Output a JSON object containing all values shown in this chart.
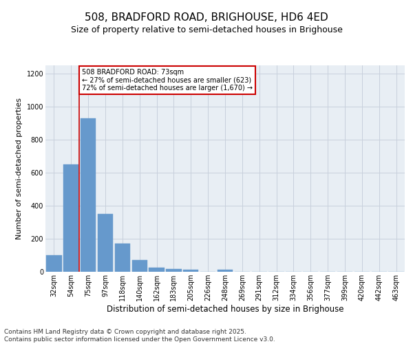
{
  "title": "508, BRADFORD ROAD, BRIGHOUSE, HD6 4ED",
  "subtitle": "Size of property relative to semi-detached houses in Brighouse",
  "xlabel": "Distribution of semi-detached houses by size in Brighouse",
  "ylabel": "Number of semi-detached properties",
  "categories": [
    "32sqm",
    "54sqm",
    "75sqm",
    "97sqm",
    "118sqm",
    "140sqm",
    "162sqm",
    "183sqm",
    "205sqm",
    "226sqm",
    "248sqm",
    "269sqm",
    "291sqm",
    "312sqm",
    "334sqm",
    "356sqm",
    "377sqm",
    "399sqm",
    "420sqm",
    "442sqm",
    "463sqm"
  ],
  "values": [
    100,
    650,
    930,
    350,
    170,
    70,
    25,
    15,
    13,
    0,
    12,
    0,
    0,
    0,
    0,
    0,
    0,
    0,
    0,
    0,
    0
  ],
  "bar_color": "#6699cc",
  "bar_edge_color": "#6699cc",
  "grid_color": "#c8d0dc",
  "background_color": "#e8eef4",
  "vline_color": "#cc0000",
  "annotation_text": "508 BRADFORD ROAD: 73sqm\n← 27% of semi-detached houses are smaller (623)\n72% of semi-detached houses are larger (1,670) →",
  "annotation_box_color": "#ffffff",
  "annotation_box_edge": "#cc0000",
  "ylim": [
    0,
    1250
  ],
  "yticks": [
    0,
    200,
    400,
    600,
    800,
    1000,
    1200
  ],
  "footer_text": "Contains HM Land Registry data © Crown copyright and database right 2025.\nContains public sector information licensed under the Open Government Licence v3.0.",
  "title_fontsize": 11,
  "subtitle_fontsize": 9,
  "xlabel_fontsize": 8.5,
  "ylabel_fontsize": 8,
  "tick_fontsize": 7,
  "footer_fontsize": 6.5,
  "annot_fontsize": 7
}
